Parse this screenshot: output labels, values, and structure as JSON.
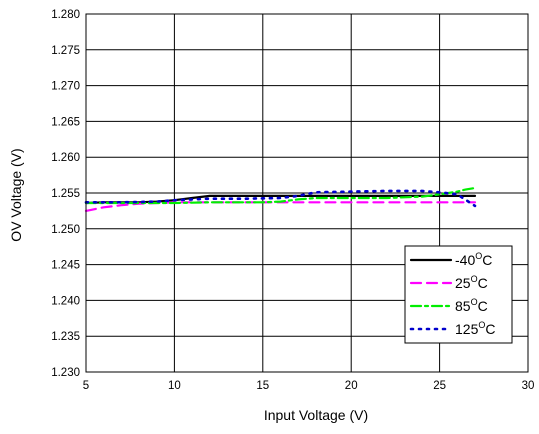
{
  "chart_data": {
    "type": "line",
    "title": "",
    "xlabel": "Input Voltage (V)",
    "ylabel": "OV Voltage (V)",
    "xlim": [
      5,
      30
    ],
    "ylim": [
      1.23,
      1.28
    ],
    "xticks": [
      "5",
      "10",
      "15",
      "20",
      "25",
      "30"
    ],
    "yticks": [
      "1.230",
      "1.235",
      "1.240",
      "1.245",
      "1.250",
      "1.255",
      "1.260",
      "1.265",
      "1.270",
      "1.275",
      "1.280"
    ],
    "grid": true,
    "legend_position": "lower-right",
    "series": [
      {
        "name": "-40°C",
        "label_main": "-40",
        "label_unit": "C",
        "color": "#000000",
        "dash": "solid",
        "x": [
          5,
          6,
          8,
          9,
          10,
          11,
          12,
          14,
          16,
          18,
          20,
          22,
          24,
          26,
          27
        ],
        "y": [
          1.2536,
          1.2537,
          1.2537,
          1.2538,
          1.254,
          1.2543,
          1.2546,
          1.2546,
          1.2546,
          1.2546,
          1.2546,
          1.2546,
          1.2546,
          1.2546,
          1.2546
        ]
      },
      {
        "name": "25°C",
        "label_main": "25",
        "label_unit": "C",
        "color": "#ff00ff",
        "dash": "dash",
        "x": [
          5,
          6,
          7,
          8,
          10,
          12,
          15,
          18,
          20,
          22,
          24,
          26,
          27
        ],
        "y": [
          1.2525,
          1.253,
          1.2533,
          1.2535,
          1.2537,
          1.2537,
          1.2537,
          1.2537,
          1.2537,
          1.2537,
          1.2537,
          1.2537,
          1.2537
        ]
      },
      {
        "name": "85°C",
        "label_main": "85",
        "label_unit": "C",
        "color": "#00ee00",
        "dash": "dashdot",
        "x": [
          5,
          8,
          10,
          12,
          15,
          16,
          17,
          18,
          20,
          22,
          24,
          25,
          26,
          26.5,
          27
        ],
        "y": [
          1.2536,
          1.2536,
          1.2536,
          1.2537,
          1.2537,
          1.2538,
          1.2541,
          1.2543,
          1.2543,
          1.2543,
          1.2545,
          1.2548,
          1.2552,
          1.2555,
          1.2557
        ]
      },
      {
        "name": "125°C",
        "label_main": "125",
        "label_unit": "C",
        "color": "#0000cc",
        "dash": "dot",
        "x": [
          5,
          7,
          9,
          10,
          12,
          14,
          16,
          17,
          18,
          20,
          22,
          24,
          25,
          26,
          27
        ],
        "y": [
          1.2537,
          1.2537,
          1.2538,
          1.254,
          1.2542,
          1.2542,
          1.2543,
          1.2546,
          1.2551,
          1.2552,
          1.2553,
          1.2553,
          1.2551,
          1.2548,
          1.2532
        ]
      }
    ]
  }
}
